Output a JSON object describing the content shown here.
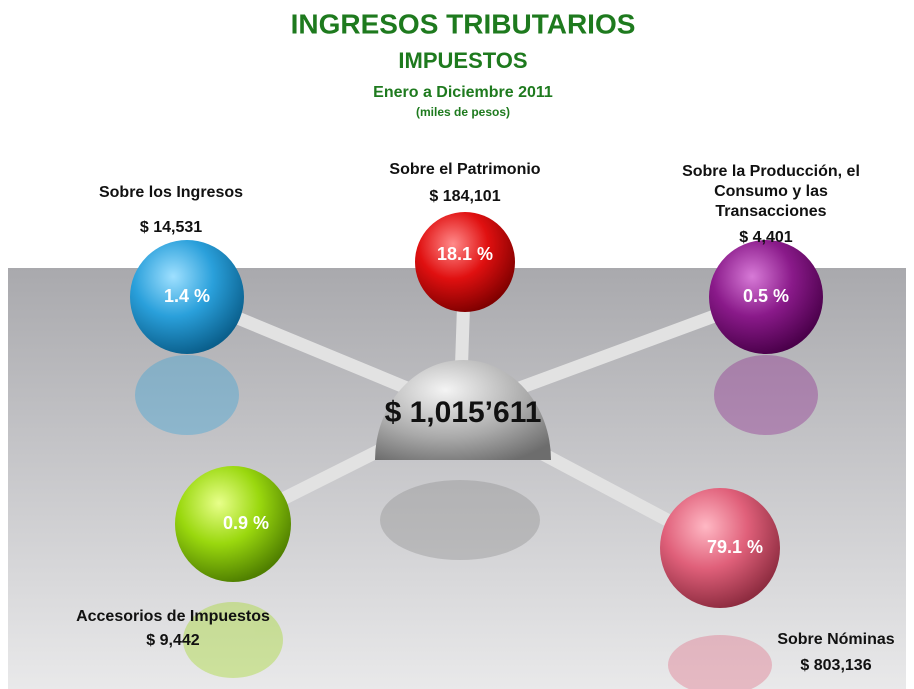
{
  "header": {
    "title": "INGRESOS TRIBUTARIOS",
    "subtitle": "IMPUESTOS",
    "period": "Enero a Diciembre 2011",
    "units": "(miles de pesos)"
  },
  "center": {
    "total": "$ 1,015’611"
  },
  "nodes": [
    {
      "label_lines": [
        "Sobre los Ingresos"
      ],
      "amount": "$ 14,531",
      "percent": "1.4 %"
    },
    {
      "label_lines": [
        "Sobre el Patrimonio"
      ],
      "amount": "$ 184,101",
      "percent": "18.1 %"
    },
    {
      "label_lines": [
        "Sobre la Producción, el",
        "Consumo y las",
        "Transacciones"
      ],
      "amount": "$ 4,401",
      "percent": "0.5 %"
    },
    {
      "label_lines": [
        "Accesorios de Impuestos"
      ],
      "amount": "$ 9,442",
      "percent": "0.9 %"
    },
    {
      "label_lines": [
        "Sobre Nóminas"
      ],
      "amount": "$ 803,136",
      "percent": "79.1 %"
    }
  ]
}
